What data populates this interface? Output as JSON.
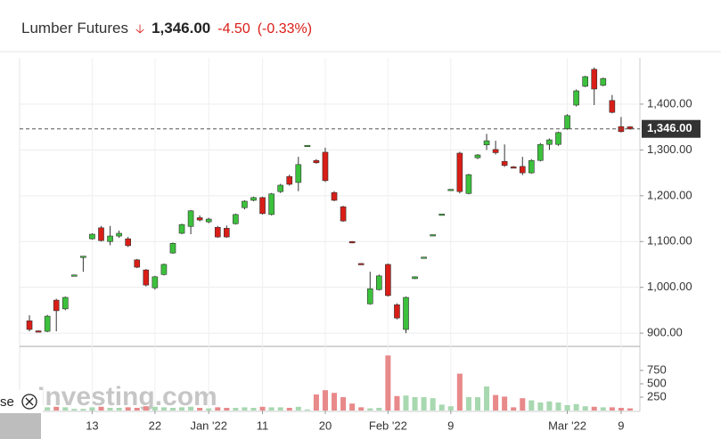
{
  "chart_data": {
    "type": "candlestick",
    "title": "Lumber Futures",
    "price": "1,346.00",
    "change": "-4.50",
    "change_pct": "(-0.33%)",
    "open": [
      927,
      905,
      904,
      972,
      953,
      1025,
      1066,
      1106,
      1130,
      1100,
      1112,
      1106,
      1060,
      1038,
      999,
      1028,
      1075,
      1118,
      1133,
      1152,
      1143,
      1131,
      1129,
      1139,
      1174,
      1190,
      1196,
      1159,
      1209,
      1242,
      1229,
      1308,
      1277,
      1295,
      1207,
      1176,
      1100,
      1052,
      964,
      995,
      1050,
      962,
      908,
      1019,
      1064,
      1113,
      1158,
      1212,
      1293,
      1205,
      1283,
      1311,
      1301,
      1275,
      1263,
      1264,
      1250,
      1277,
      1312,
      1312,
      1346,
      1398,
      1439,
      1476,
      1441,
      1408,
      1351,
      1350.5
    ],
    "high": [
      939,
      906,
      940,
      975,
      980,
      1028,
      1068,
      1118,
      1134,
      1134,
      1124,
      1110,
      1062,
      1040,
      1025,
      1052,
      1098,
      1139,
      1169,
      1157,
      1152,
      1134,
      1135,
      1161,
      1190,
      1198,
      1198,
      1206,
      1226,
      1246,
      1285,
      1310,
      1280,
      1305,
      1210,
      1178,
      1101,
      1053,
      1034,
      1028,
      1052,
      965,
      980,
      1024,
      1066,
      1115,
      1160,
      1214,
      1296,
      1248,
      1291,
      1335,
      1320,
      1312,
      1265,
      1285,
      1280,
      1315,
      1325,
      1340,
      1378,
      1432,
      1462,
      1480,
      1458,
      1420,
      1372,
      1352
    ],
    "low": [
      904,
      902,
      902,
      904,
      950,
      1024,
      1034,
      1104,
      1100,
      1092,
      1108,
      1088,
      1042,
      1002,
      995,
      1026,
      1073,
      1116,
      1116,
      1144,
      1140,
      1108,
      1108,
      1137,
      1170,
      1188,
      1159,
      1157,
      1206,
      1222,
      1210,
      1307,
      1270,
      1230,
      1188,
      1143,
      1096,
      1049,
      962,
      993,
      980,
      930,
      900,
      1018,
      1063,
      1112,
      1157,
      1211,
      1205,
      1203,
      1280,
      1300,
      1290,
      1263,
      1260,
      1245,
      1248,
      1275,
      1300,
      1309,
      1344,
      1395,
      1437,
      1398,
      1439,
      1380,
      1338,
      1344
    ],
    "close": [
      908,
      903,
      937,
      949,
      978,
      1027,
      1068,
      1116,
      1102,
      1112,
      1118,
      1091,
      1044,
      1005,
      1023,
      1050,
      1096,
      1137,
      1167,
      1147,
      1149,
      1110,
      1110,
      1159,
      1188,
      1196,
      1161,
      1204,
      1223,
      1225,
      1268,
      1310,
      1272,
      1233,
      1190,
      1145,
      1097,
      1050,
      997,
      1025,
      982,
      933,
      978,
      1023,
      1066,
      1115,
      1160,
      1214,
      1209,
      1246,
      1289,
      1320,
      1294,
      1266,
      1261,
      1250,
      1277,
      1312,
      1322,
      1338,
      1375,
      1429,
      1460,
      1433,
      1456,
      1382,
      1340,
      1346
    ],
    "volume": [
      80,
      40,
      60,
      70,
      60,
      30,
      30,
      60,
      70,
      50,
      50,
      60,
      50,
      80,
      70,
      60,
      50,
      60,
      70,
      50,
      40,
      60,
      50,
      50,
      60,
      50,
      70,
      60,
      60,
      50,
      70,
      20,
      300,
      380,
      330,
      250,
      130,
      60,
      40,
      50,
      1030,
      270,
      280,
      250,
      250,
      230,
      110,
      80,
      690,
      250,
      250,
      450,
      290,
      260,
      60,
      230,
      190,
      150,
      170,
      150,
      100,
      120,
      80,
      70,
      60,
      60,
      50,
      40
    ],
    "up_color": "#3cc13c",
    "down_color": "#d91e18",
    "up_volume_color": "#a8d8b0",
    "down_volume_color": "#e8898a",
    "xlim": [
      -0.5,
      67.5
    ],
    "xticks": [
      {
        "value": 7,
        "label": "13"
      },
      {
        "value": 14,
        "label": "22"
      },
      {
        "value": 20,
        "label": "Jan '22"
      },
      {
        "value": 26,
        "label": "11"
      },
      {
        "value": 33,
        "label": "20"
      },
      {
        "value": 40,
        "label": "Feb '22"
      },
      {
        "value": 47,
        "label": "9"
      },
      {
        "value": 60,
        "label": "Mar '22"
      },
      {
        "value": 66,
        "label": "9"
      }
    ],
    "ylim": [
      873,
      1501
    ],
    "yticks": [
      {
        "value": 900,
        "label": "900.00"
      },
      {
        "value": 1000,
        "label": "1,000.00"
      },
      {
        "value": 1100,
        "label": "1,100.00"
      },
      {
        "value": 1200,
        "label": "1,200.00"
      },
      {
        "value": 1300,
        "label": "1,300.00"
      },
      {
        "value": 1400,
        "label": "1,400.00"
      }
    ],
    "volume_ylim": [
      0,
      1150
    ],
    "volume_yticks": [
      250,
      500,
      750
    ],
    "grid": true,
    "watermark": "Investing.com",
    "side_text": "se"
  }
}
